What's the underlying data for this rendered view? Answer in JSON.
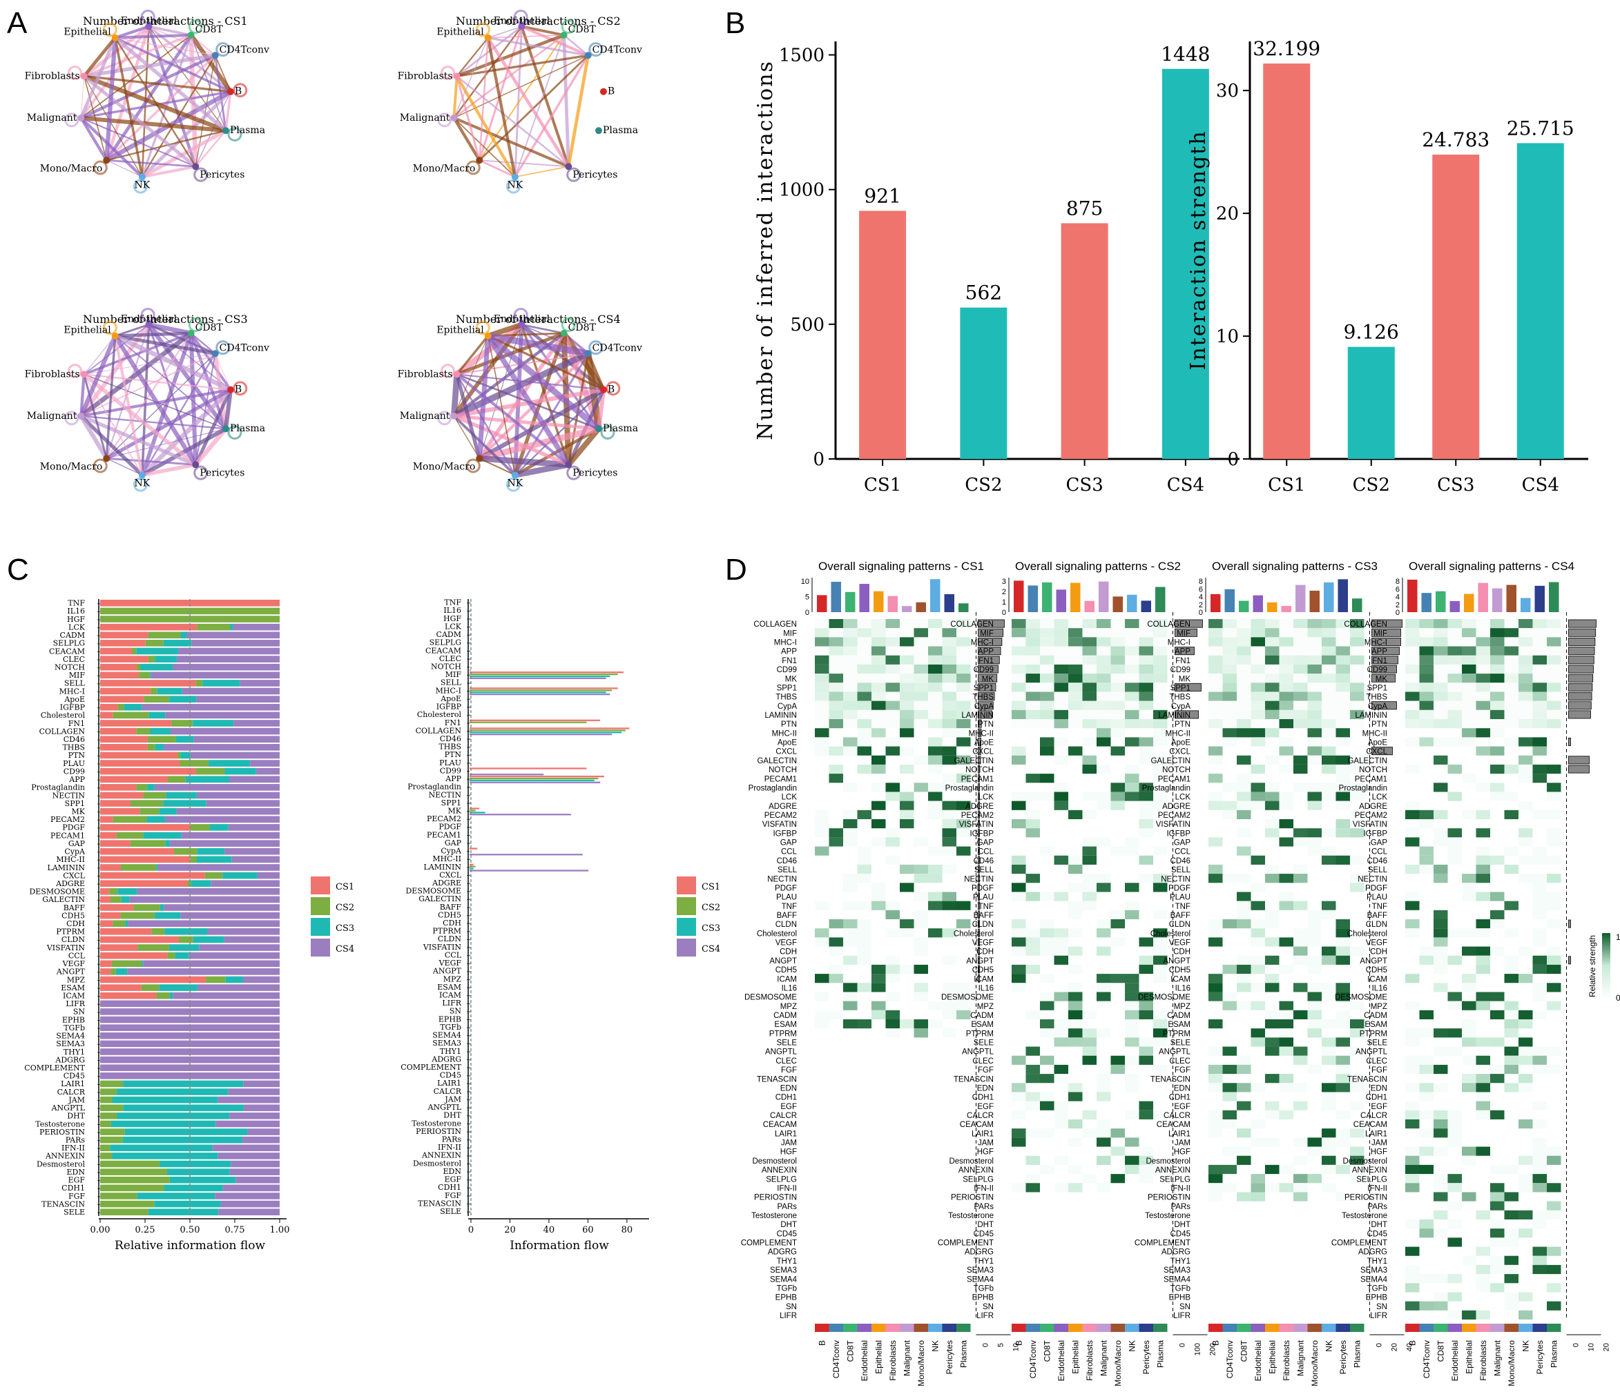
{
  "panels": {
    "A": "A",
    "B": "B",
    "C": "C",
    "D": "D"
  },
  "colors": {
    "CS1": "#F0746E",
    "CS2": "#7CAE42",
    "CS3": "#1FB9B4",
    "CS4": "#9B7EBF",
    "barRed": "#F0746E",
    "barTeal": "#1FBCB7",
    "heatDark": "#0E5A2B"
  },
  "networkA": {
    "titles": [
      "Number of interactions - CS1",
      "Number of interactions - CS2",
      "Number of interactions - CS3",
      "Number of interactions - CS4"
    ],
    "nodes": [
      "Endothelial",
      "CD8T",
      "CD4Tconv",
      "B",
      "Plasma",
      "Pericytes",
      "NK",
      "Mono/Macro",
      "Malignant",
      "Fibroblasts",
      "Epithelial"
    ],
    "nodeColors": [
      "#8B5FBF",
      "#3CB371",
      "#4682B4",
      "#D62728",
      "#2E8B8B",
      "#6A4C93",
      "#5DADE2",
      "#8B4513",
      "#C39BD3",
      "#F48FB1",
      "#F39C12"
    ]
  },
  "chart_data": [
    {
      "type": "bar",
      "title": "",
      "categories": [
        "CS1",
        "CS2",
        "CS3",
        "CS4"
      ],
      "values": [
        921,
        562,
        875,
        1448
      ],
      "data_labels": [
        "921",
        "562",
        "875",
        "1448"
      ],
      "ylabel": "Number of inferred interactions",
      "ylim": [
        0,
        1550
      ],
      "yticks": [
        0,
        500,
        1000,
        1500
      ]
    },
    {
      "type": "bar",
      "title": "",
      "categories": [
        "CS1",
        "CS2",
        "CS3",
        "CS4"
      ],
      "values": [
        32.199,
        9.126,
        24.783,
        25.715
      ],
      "data_labels": [
        "32.199",
        "9.126",
        "24.783",
        "25.715"
      ],
      "ylabel": "Interaction strength",
      "ylim": [
        0,
        34
      ],
      "yticks": [
        0,
        10,
        20,
        30
      ]
    },
    {
      "type": "bar",
      "title": "",
      "orientation": "horizontal-stacked",
      "xlabel": "Relative information flow",
      "xticks": [
        "0.00",
        "0.25",
        "0.50",
        "0.75",
        "1.00"
      ],
      "pathways": [
        "TNF",
        "IL16",
        "HGF",
        "LCK",
        "CADM",
        "SELPLG",
        "CEACAM",
        "CLEC",
        "NOTCH",
        "MIF",
        "SELL",
        "MHC-I",
        "ApoE",
        "IGFBP",
        "Cholesterol",
        "FN1",
        "COLLAGEN",
        "CD46",
        "THBS",
        "PTN",
        "PLAU",
        "CD99",
        "APP",
        "Prostaglandin",
        "NECTIN",
        "SPP1",
        "MK",
        "PECAM2",
        "PDGF",
        "PECAM1",
        "GAP",
        "CypA",
        "MHC-II",
        "LAMININ",
        "CXCL",
        "ADGRE",
        "DESMOSOME",
        "GALECTIN",
        "BAFF",
        "CDH5",
        "CDH",
        "PTPRM",
        "CLDN",
        "VISFATIN",
        "CCL",
        "VEGF",
        "ANGPT",
        "MPZ",
        "ESAM",
        "ICAM",
        "LIFR",
        "SN",
        "EPHB",
        "TGFb",
        "SEMA4",
        "SEMA3",
        "THY1",
        "ADGRG",
        "COMPLEMENT",
        "CD45",
        "LAIR1",
        "CALCR",
        "JAM",
        "ANGPTL",
        "DHT",
        "Testosterone",
        "PERIOSTIN",
        "PARs",
        "IFN-II",
        "ANNEXIN",
        "Desmosterol",
        "EDN",
        "EGF",
        "CDH1",
        "FGF",
        "TENASCIN",
        "SELE"
      ],
      "legend": [
        "CS1",
        "CS2",
        "CS3",
        "CS4"
      ]
    },
    {
      "type": "bar",
      "title": "",
      "orientation": "horizontal-grouped",
      "xlabel": "Information flow",
      "xticks": [
        "0",
        "20",
        "40",
        "60",
        "80"
      ],
      "legend": [
        "CS1",
        "CS2",
        "CS3",
        "CS4"
      ],
      "values": {
        "NOTCH": [
          0,
          0,
          0,
          0.5
        ],
        "MIF": [
          79,
          76,
          72,
          70
        ],
        "MHC-I": [
          76,
          73,
          70,
          72
        ],
        "FN1": [
          67,
          60,
          0,
          0
        ],
        "COLLAGEN": [
          82,
          80,
          78,
          73
        ],
        "CD99": [
          60,
          0,
          0,
          38
        ],
        "APP": [
          69,
          66,
          64,
          67
        ],
        "MK": [
          5,
          3,
          8,
          52
        ],
        "CypA": [
          4,
          0,
          0,
          58
        ],
        "LAMININ": [
          2,
          3,
          2,
          61
        ]
      }
    },
    {
      "type": "heatmap",
      "titles": [
        "Overall signaling patterns - CS1",
        "Overall signaling patterns - CS2",
        "Overall signaling patterns - CS3",
        "Overall signaling patterns - CS4"
      ],
      "rows": [
        "COLLAGEN",
        "MIF",
        "MHC-I",
        "APP",
        "FN1",
        "CD99",
        "MK",
        "SPP1",
        "THBS",
        "CypA",
        "LAMININ",
        "PTN",
        "MHC-II",
        "ApoE",
        "CXCL",
        "GALECTIN",
        "NOTCH",
        "PECAM1",
        "Prostaglandin",
        "LCK",
        "ADGRE",
        "PECAM2",
        "VISFATIN",
        "IGFBP",
        "GAP",
        "CCL",
        "CD46",
        "SELL",
        "NECTIN",
        "PDGF",
        "PLAU",
        "TNF",
        "BAFF",
        "CLDN",
        "Cholesterol",
        "VEGF",
        "CDH",
        "ANGPT",
        "CDH5",
        "ICAM",
        "IL16",
        "DESMOSOME",
        "MPZ",
        "CADM",
        "ESAM",
        "PTPRM",
        "SELE",
        "ANGPTL",
        "CLEC",
        "FGF",
        "TENASCIN",
        "EDN",
        "CDH1",
        "EGF",
        "CALCR",
        "CEACAM",
        "LAIR1",
        "JAM",
        "HGF",
        "Desmosterol",
        "ANNEXIN",
        "SELPLG",
        "IFN-II",
        "PERIOSTIN",
        "PARs",
        "Testosterone",
        "DHT",
        "CD45",
        "COMPLEMENT",
        "ADGRG",
        "THY1",
        "SEMA3",
        "SEMA4",
        "TGFb",
        "EPHB",
        "SN",
        "LIFR"
      ],
      "columns": [
        "B",
        "CD4Tconv",
        "CD8T",
        "Endothelial",
        "Epithelial",
        "Fibroblasts",
        "Malignant",
        "Mono/Macro",
        "NK",
        "Pericytes",
        "Plasma"
      ],
      "legend_title": "Relative strength",
      "legend_ticks": [
        "0",
        "1"
      ],
      "top_axis_ticks": [
        [
          "0",
          "5",
          "10"
        ],
        [
          "0",
          "1",
          "2",
          "3"
        ],
        [
          "0",
          "2",
          "4",
          "6",
          "8"
        ],
        [
          "0",
          "2",
          "4",
          "6",
          "8"
        ]
      ],
      "side_axis_ticks": [
        [
          "0",
          "5",
          "10"
        ],
        [
          "0",
          "100",
          "200"
        ],
        [
          "0",
          "20",
          "40"
        ],
        [
          "0",
          "10",
          "20"
        ]
      ]
    }
  ]
}
